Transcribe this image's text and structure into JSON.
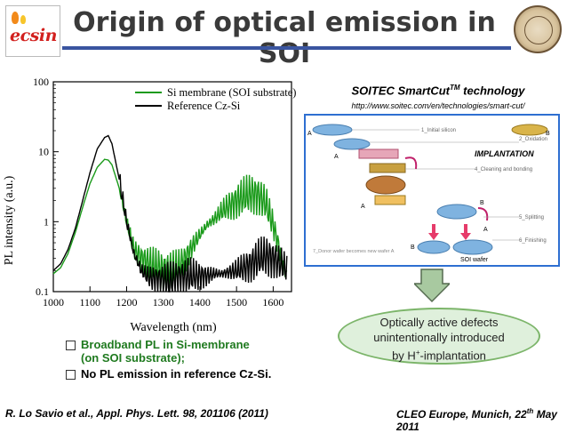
{
  "slide": {
    "title": "Origin of optical emission in SOI",
    "logo_left_text": "ecsin"
  },
  "chart_data": {
    "type": "line",
    "xlabel": "Wavelength (nm)",
    "ylabel": "PL intensity (a.u.)",
    "xlim": [
      1000,
      1650
    ],
    "ylim": [
      0.1,
      100
    ],
    "yscale": "log",
    "xticks": [
      "1000",
      "1100",
      "1200",
      "1300",
      "1400",
      "1500",
      "1600"
    ],
    "yticks": [
      "0.1",
      "1",
      "10",
      "100"
    ],
    "legend_position": "top-right",
    "series": [
      {
        "name": "Si membrane (SOI substrate)",
        "color": "#1a9a1a",
        "x": [
          1000,
          1020,
          1040,
          1060,
          1080,
          1100,
          1120,
          1140,
          1150,
          1160,
          1180,
          1200,
          1220,
          1240,
          1260,
          1280,
          1300,
          1320,
          1340,
          1360,
          1380,
          1400,
          1420,
          1440,
          1460,
          1480,
          1500,
          1520,
          1540,
          1560,
          1580,
          1600,
          1620,
          1640
        ],
        "y": [
          0.18,
          0.22,
          0.35,
          0.7,
          1.6,
          3.5,
          6.0,
          7.8,
          7.6,
          6.5,
          3.0,
          1.0,
          0.4,
          0.3,
          0.25,
          0.22,
          0.2,
          0.2,
          0.22,
          0.3,
          0.45,
          0.65,
          0.9,
          1.1,
          1.4,
          1.7,
          2.0,
          2.3,
          2.5,
          2.4,
          1.8,
          0.9,
          0.35,
          0.15
        ]
      },
      {
        "name": "Reference Cz-Si",
        "color": "#000000",
        "x": [
          1000,
          1020,
          1040,
          1060,
          1080,
          1100,
          1120,
          1140,
          1150,
          1160,
          1180,
          1200,
          1220,
          1240,
          1260,
          1280,
          1300,
          1320,
          1340,
          1360,
          1380,
          1400,
          1420,
          1440,
          1460,
          1480,
          1500,
          1520,
          1540,
          1560,
          1580,
          1600,
          1620,
          1640
        ],
        "y": [
          0.2,
          0.25,
          0.4,
          0.8,
          2.0,
          5.0,
          11,
          16,
          17,
          13,
          4.0,
          1.0,
          0.35,
          0.2,
          0.16,
          0.15,
          0.14,
          0.14,
          0.15,
          0.16,
          0.17,
          0.17,
          0.17,
          0.18,
          0.18,
          0.19,
          0.2,
          0.22,
          0.25,
          0.3,
          0.32,
          0.3,
          0.25,
          0.2
        ]
      }
    ]
  },
  "smartcut": {
    "title": "SOITEC SmartCut",
    "title_sup": "TM",
    "title_suffix": " technology",
    "url": "http://www.soitec.com/en/technologies/smart-cut/",
    "implantation_label": "IMPLANTATION",
    "steps": [
      "1_Initial silicon",
      "2_Oxidation",
      "4_Cleaning and bonding",
      "5_Splitting",
      "6_Finishing",
      "7_Donor wafer becomes new wafer A"
    ],
    "soi_label": "SOI wafer",
    "letters": [
      "A",
      "B",
      "A",
      "A",
      "B",
      "B",
      "A"
    ]
  },
  "callout": {
    "line1": "Optically active defects",
    "line2": "unintentionally introduced",
    "line3_prefix": "by H",
    "line3_sup": "+",
    "line3_suffix": "-implantation"
  },
  "bullets": [
    {
      "line1": "Broadband PL in Si-membrane",
      "line2": "(on SOI substrate);"
    },
    {
      "line1": "No PL emission in reference Cz-Si."
    }
  ],
  "footer": {
    "reference": "R. Lo Savio et al., Appl. Phys. Lett. 98, 201106 (2011)",
    "venue_prefix": "CLEO Europe, Munich, 22",
    "venue_sup": "th",
    "venue_suffix": " May 2011"
  }
}
